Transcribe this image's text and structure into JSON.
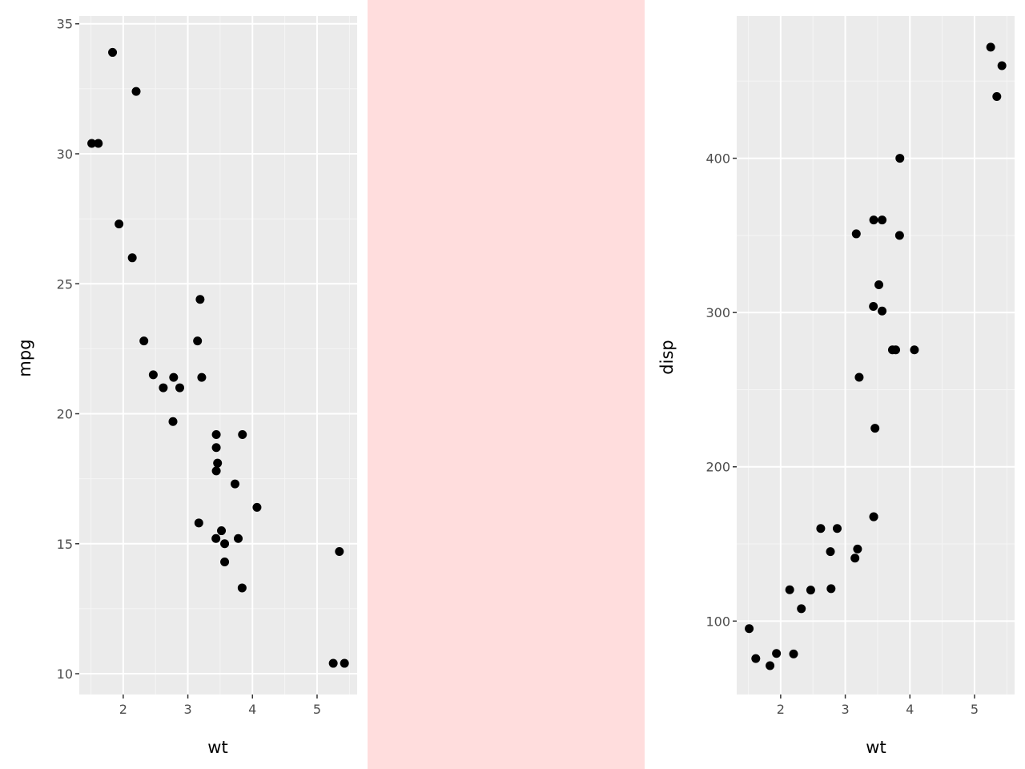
{
  "colors": {
    "panel_background": "#ebebeb",
    "grid_major": "#ffffff",
    "grid_minor": "#f5f5f5",
    "point": "#000000",
    "spacer_background": "#ffdddd",
    "tick_text": "#4d4d4d",
    "tick_mark": "#333333"
  },
  "chart_data": [
    {
      "type": "scatter",
      "xlabel": "wt",
      "ylabel": "mpg",
      "xlim": [
        1.32,
        5.62
      ],
      "ylim": [
        9.2,
        35.3
      ],
      "xticks": [
        2,
        3,
        4,
        5
      ],
      "xtick_labels": [
        "2",
        "3",
        "4",
        "5"
      ],
      "yticks": [
        10,
        15,
        20,
        25,
        30,
        35
      ],
      "ytick_labels": [
        "10",
        "15",
        "20",
        "25",
        "30",
        "35"
      ],
      "grid": true,
      "points": [
        [
          2.62,
          21.0
        ],
        [
          2.875,
          21.0
        ],
        [
          2.32,
          22.8
        ],
        [
          3.215,
          21.4
        ],
        [
          3.44,
          18.7
        ],
        [
          3.46,
          18.1
        ],
        [
          3.57,
          14.3
        ],
        [
          3.19,
          24.4
        ],
        [
          3.15,
          22.8
        ],
        [
          3.44,
          19.2
        ],
        [
          3.44,
          17.8
        ],
        [
          4.07,
          16.4
        ],
        [
          3.73,
          17.3
        ],
        [
          3.78,
          15.2
        ],
        [
          5.25,
          10.4
        ],
        [
          5.424,
          10.4
        ],
        [
          5.345,
          14.7
        ],
        [
          2.2,
          32.4
        ],
        [
          1.615,
          30.4
        ],
        [
          1.835,
          33.9
        ],
        [
          2.465,
          21.5
        ],
        [
          3.52,
          15.5
        ],
        [
          3.435,
          15.2
        ],
        [
          3.84,
          13.3
        ],
        [
          3.845,
          19.2
        ],
        [
          1.935,
          27.3
        ],
        [
          2.14,
          26.0
        ],
        [
          1.513,
          30.4
        ],
        [
          3.17,
          15.8
        ],
        [
          2.77,
          19.7
        ],
        [
          3.57,
          15.0
        ],
        [
          2.78,
          21.4
        ]
      ]
    },
    {
      "type": "scatter",
      "xlabel": "wt",
      "ylabel": "disp",
      "xlim": [
        1.32,
        5.62
      ],
      "ylim": [
        52.4,
        492.2
      ],
      "xticks": [
        2,
        3,
        4,
        5
      ],
      "xtick_labels": [
        "2",
        "3",
        "4",
        "5"
      ],
      "yticks": [
        100,
        200,
        300,
        400
      ],
      "ytick_labels": [
        "100",
        "200",
        "300",
        "400"
      ],
      "grid": true,
      "points": [
        [
          2.62,
          160.0
        ],
        [
          2.875,
          160.0
        ],
        [
          2.32,
          108.0
        ],
        [
          3.215,
          258.0
        ],
        [
          3.44,
          360.0
        ],
        [
          3.46,
          225.0
        ],
        [
          3.57,
          360.0
        ],
        [
          3.19,
          146.7
        ],
        [
          3.15,
          140.8
        ],
        [
          3.44,
          167.6
        ],
        [
          3.44,
          167.6
        ],
        [
          4.07,
          275.8
        ],
        [
          3.73,
          275.8
        ],
        [
          3.78,
          275.8
        ],
        [
          5.25,
          472.0
        ],
        [
          5.424,
          460.0
        ],
        [
          5.345,
          440.0
        ],
        [
          2.2,
          78.7
        ],
        [
          1.615,
          75.7
        ],
        [
          1.835,
          71.1
        ],
        [
          2.465,
          120.1
        ],
        [
          3.52,
          318.0
        ],
        [
          3.435,
          304.0
        ],
        [
          3.84,
          350.0
        ],
        [
          3.845,
          400.0
        ],
        [
          1.935,
          79.0
        ],
        [
          2.14,
          120.3
        ],
        [
          1.513,
          95.1
        ],
        [
          3.17,
          351.0
        ],
        [
          2.77,
          145.0
        ],
        [
          3.57,
          301.0
        ],
        [
          2.78,
          121.0
        ]
      ]
    }
  ]
}
